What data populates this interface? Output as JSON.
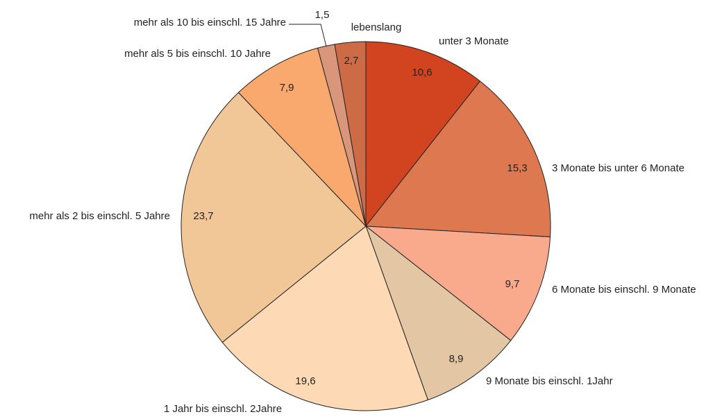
{
  "chart_data": {
    "type": "pie",
    "categories": [
      "unter 3 Monate",
      "3 Monate bis unter 6 Monate",
      "6 Monate bis einschl. 9 Monate",
      "9 Monate bis einschl. 1Jahr",
      "1 Jahr bis einschl. 2Jahre",
      "mehr als 2 bis einschl. 5 Jahre",
      "mehr als 5 bis einschl. 10 Jahre",
      "mehr als 10 bis einschl. 15 Jahre",
      "lebenslang"
    ],
    "values": [
      10.6,
      15.3,
      9.7,
      8.9,
      19.6,
      23.7,
      7.9,
      1.5,
      2.7
    ],
    "value_labels": [
      "10,6",
      "15,3",
      "9,7",
      "8,9",
      "19,6",
      "23,7",
      "7,9",
      "1,5",
      "2,7"
    ],
    "colors": [
      "#d2431f",
      "#de7850",
      "#f9a98c",
      "#e3c6a3",
      "#fddab5",
      "#f2c798",
      "#f9a86e",
      "#d9967a",
      "#cd6b47"
    ]
  }
}
